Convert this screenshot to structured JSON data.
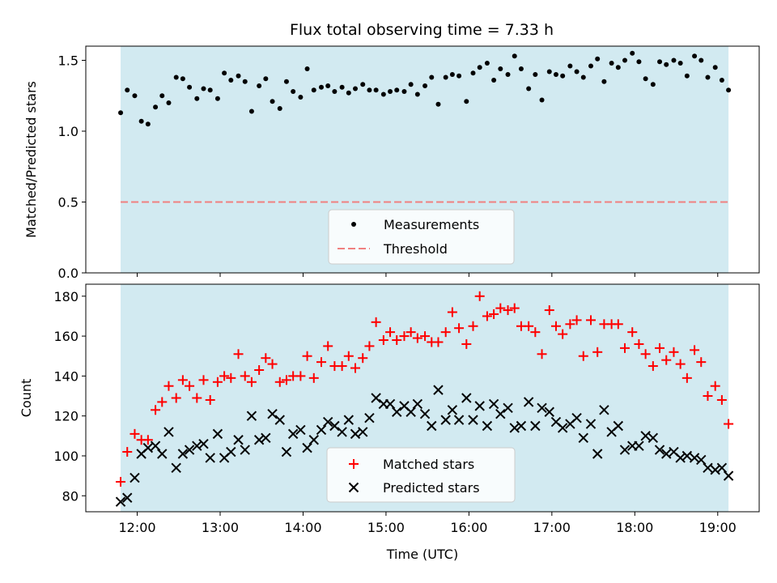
{
  "title": "Flux total observing time = 7.33 h",
  "colors": {
    "observing_band": "#add8e6",
    "measurements": "#000000",
    "threshold": "#f08080",
    "matched": "#ff0000",
    "predicted": "#000000"
  },
  "chart_data": [
    {
      "type": "scatter",
      "ylabel": "Matched/Predicted stars",
      "xlabel": "",
      "ylim": [
        0,
        1.6
      ],
      "yticks": [
        0.0,
        0.5,
        1.0,
        1.5
      ],
      "ytick_labels": [
        "0.0",
        "0.5",
        "1.0",
        "1.5"
      ],
      "xlim": [
        11.38,
        19.5
      ],
      "observing_window": [
        11.8,
        19.13
      ],
      "legend": {
        "placement": "lower center",
        "entries": [
          "Measurements",
          "Threshold"
        ]
      },
      "threshold": 0.5,
      "series": [
        {
          "name": "Measurements",
          "x": [
            11.8,
            11.88,
            11.97,
            12.05,
            12.13,
            12.22,
            12.3,
            12.38,
            12.47,
            12.55,
            12.63,
            12.72,
            12.8,
            12.88,
            12.97,
            13.05,
            13.13,
            13.22,
            13.3,
            13.38,
            13.47,
            13.55,
            13.63,
            13.72,
            13.8,
            13.88,
            13.97,
            14.05,
            14.13,
            14.22,
            14.3,
            14.38,
            14.47,
            14.55,
            14.63,
            14.72,
            14.8,
            14.88,
            14.97,
            15.05,
            15.13,
            15.22,
            15.3,
            15.38,
            15.47,
            15.55,
            15.63,
            15.72,
            15.8,
            15.88,
            15.97,
            16.05,
            16.13,
            16.22,
            16.3,
            16.38,
            16.47,
            16.55,
            16.63,
            16.72,
            16.8,
            16.88,
            16.97,
            17.05,
            17.13,
            17.22,
            17.3,
            17.38,
            17.47,
            17.55,
            17.63,
            17.72,
            17.8,
            17.88,
            17.97,
            18.05,
            18.13,
            18.22,
            18.3,
            18.38,
            18.47,
            18.55,
            18.63,
            18.72,
            18.8,
            18.88,
            18.97,
            19.05,
            19.13
          ],
          "y": [
            1.13,
            1.29,
            1.25,
            1.07,
            1.05,
            1.17,
            1.25,
            1.2,
            1.38,
            1.37,
            1.31,
            1.23,
            1.3,
            1.29,
            1.23,
            1.41,
            1.36,
            1.39,
            1.35,
            1.14,
            1.32,
            1.37,
            1.21,
            1.16,
            1.35,
            1.28,
            1.24,
            1.44,
            1.29,
            1.31,
            1.32,
            1.28,
            1.31,
            1.27,
            1.3,
            1.33,
            1.29,
            1.29,
            1.26,
            1.28,
            1.29,
            1.28,
            1.33,
            1.26,
            1.32,
            1.38,
            1.19,
            1.38,
            1.4,
            1.39,
            1.21,
            1.41,
            1.45,
            1.48,
            1.36,
            1.44,
            1.4,
            1.53,
            1.44,
            1.3,
            1.4,
            1.22,
            1.42,
            1.4,
            1.39,
            1.46,
            1.42,
            1.38,
            1.46,
            1.51,
            1.35,
            1.48,
            1.45,
            1.5,
            1.55,
            1.49,
            1.37,
            1.33,
            1.49,
            1.47,
            1.5,
            1.48,
            1.39,
            1.53,
            1.5,
            1.38,
            1.45,
            1.36,
            1.29
          ]
        }
      ]
    },
    {
      "type": "scatter",
      "ylabel": "Count",
      "xlabel": "Time (UTC)",
      "ylim": [
        72,
        186
      ],
      "yticks": [
        80,
        100,
        120,
        140,
        160,
        180
      ],
      "ytick_labels": [
        "80",
        "100",
        "120",
        "140",
        "160",
        "180"
      ],
      "xlim": [
        11.38,
        19.5
      ],
      "xticks": [
        12,
        13,
        14,
        15,
        16,
        17,
        18,
        19
      ],
      "xtick_labels": [
        "12:00",
        "13:00",
        "14:00",
        "15:00",
        "16:00",
        "17:00",
        "18:00",
        "19:00"
      ],
      "observing_window": [
        11.8,
        19.13
      ],
      "legend": {
        "placement": "lower center",
        "entries": [
          "Matched stars",
          "Predicted stars"
        ]
      },
      "series": [
        {
          "name": "Matched stars",
          "x": [
            11.8,
            11.88,
            11.97,
            12.05,
            12.13,
            12.22,
            12.3,
            12.38,
            12.47,
            12.55,
            12.63,
            12.72,
            12.8,
            12.88,
            12.97,
            13.05,
            13.13,
            13.22,
            13.3,
            13.38,
            13.47,
            13.55,
            13.63,
            13.72,
            13.8,
            13.88,
            13.97,
            14.05,
            14.13,
            14.22,
            14.3,
            14.38,
            14.47,
            14.55,
            14.63,
            14.72,
            14.8,
            14.88,
            14.97,
            15.05,
            15.13,
            15.22,
            15.3,
            15.38,
            15.47,
            15.55,
            15.63,
            15.72,
            15.8,
            15.88,
            15.97,
            16.05,
            16.13,
            16.22,
            16.3,
            16.38,
            16.47,
            16.55,
            16.63,
            16.72,
            16.8,
            16.88,
            16.97,
            17.05,
            17.13,
            17.22,
            17.3,
            17.38,
            17.47,
            17.55,
            17.63,
            17.72,
            17.8,
            17.88,
            17.97,
            18.05,
            18.13,
            18.22,
            18.3,
            18.38,
            18.47,
            18.55,
            18.63,
            18.72,
            18.8,
            18.88,
            18.97,
            19.05,
            19.13
          ],
          "y": [
            87,
            102,
            111,
            108,
            108,
            123,
            127,
            135,
            129,
            138,
            135,
            129,
            138,
            128,
            137,
            140,
            139,
            151,
            140,
            137,
            143,
            149,
            146,
            137,
            138,
            140,
            140,
            150,
            139,
            147,
            155,
            145,
            145,
            150,
            144,
            149,
            155,
            167,
            158,
            162,
            158,
            160,
            162,
            159,
            160,
            157,
            157,
            162,
            172,
            164,
            156,
            165,
            180,
            170,
            171,
            174,
            173,
            174,
            165,
            165,
            162,
            151,
            173,
            165,
            161,
            166,
            168,
            150,
            168,
            152,
            166,
            166,
            166,
            154,
            162,
            156,
            151,
            145,
            154,
            148,
            152,
            146,
            139,
            153,
            147,
            130,
            135,
            128,
            116
          ]
        },
        {
          "name": "Predicted stars",
          "x": [
            11.8,
            11.88,
            11.97,
            12.05,
            12.13,
            12.22,
            12.3,
            12.38,
            12.47,
            12.55,
            12.63,
            12.72,
            12.8,
            12.88,
            12.97,
            13.05,
            13.13,
            13.22,
            13.3,
            13.38,
            13.47,
            13.55,
            13.63,
            13.72,
            13.8,
            13.88,
            13.97,
            14.05,
            14.13,
            14.22,
            14.3,
            14.38,
            14.47,
            14.55,
            14.63,
            14.72,
            14.8,
            14.88,
            14.97,
            15.05,
            15.13,
            15.22,
            15.3,
            15.38,
            15.47,
            15.55,
            15.63,
            15.72,
            15.8,
            15.88,
            15.97,
            16.05,
            16.13,
            16.22,
            16.3,
            16.38,
            16.47,
            16.55,
            16.63,
            16.72,
            16.8,
            16.88,
            16.97,
            17.05,
            17.13,
            17.22,
            17.3,
            17.38,
            17.47,
            17.55,
            17.63,
            17.72,
            17.8,
            17.88,
            17.97,
            18.05,
            18.13,
            18.22,
            18.3,
            18.38,
            18.47,
            18.55,
            18.63,
            18.72,
            18.8,
            18.88,
            18.97,
            19.05,
            19.13
          ],
          "y": [
            77,
            79,
            89,
            101,
            104,
            105,
            101,
            112,
            94,
            101,
            103,
            105,
            106,
            99,
            111,
            99,
            102,
            108,
            103,
            120,
            108,
            109,
            121,
            118,
            102,
            111,
            113,
            104,
            108,
            113,
            117,
            115,
            112,
            118,
            111,
            112,
            119,
            129,
            126,
            126,
            122,
            125,
            122,
            126,
            121,
            115,
            133,
            118,
            123,
            118,
            129,
            118,
            125,
            115,
            126,
            121,
            124,
            114,
            115,
            127,
            115,
            124,
            122,
            117,
            114,
            116,
            119,
            109,
            116,
            101,
            123,
            112,
            115,
            103,
            105,
            105,
            110,
            109,
            103,
            101,
            102,
            99,
            100,
            99,
            98,
            94,
            93,
            94,
            90
          ]
        }
      ]
    }
  ]
}
